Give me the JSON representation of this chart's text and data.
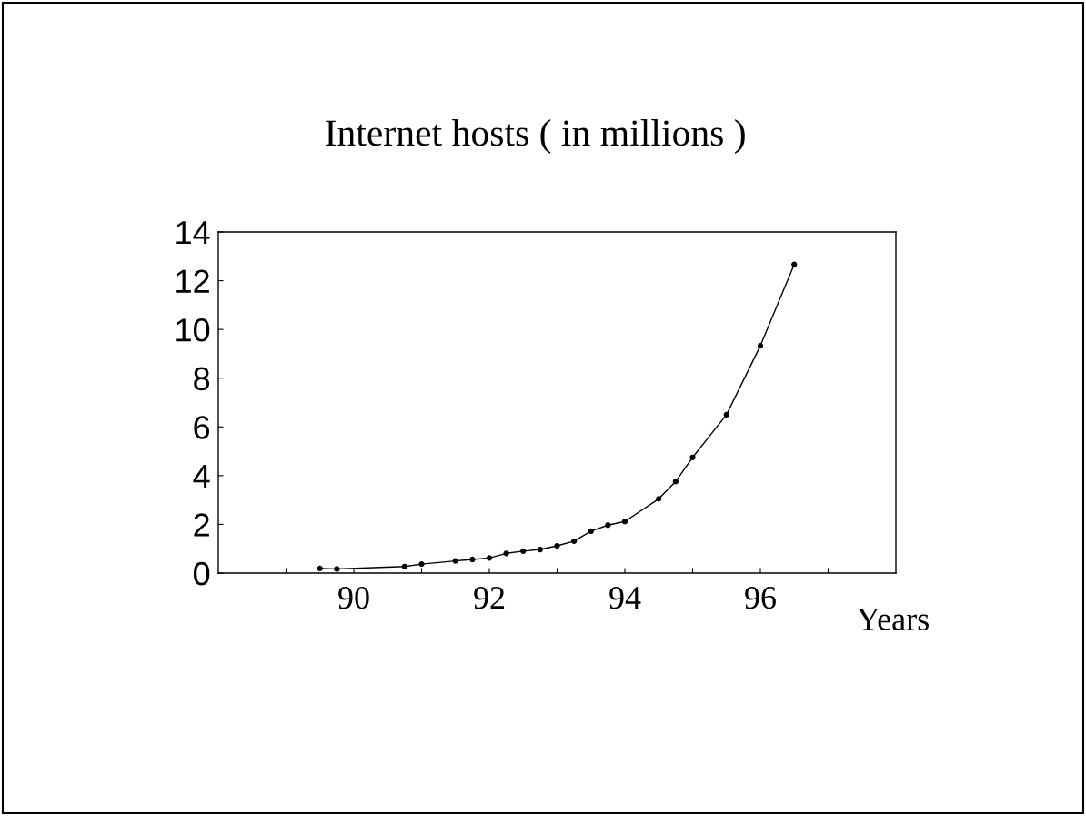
{
  "chart_data": {
    "type": "line",
    "title": "Internet hosts ( in millions )",
    "xlabel": "Years",
    "x": [
      89.5,
      89.75,
      90.75,
      91,
      91.5,
      91.75,
      92,
      92.25,
      92.5,
      92.75,
      93,
      93.25,
      93.5,
      93.75,
      94,
      94.5,
      94.75,
      95,
      95.5,
      96,
      96.5
    ],
    "series": [
      {
        "color": "#000000",
        "values": [
          0.19,
          0.17,
          0.27,
          0.37,
          0.5,
          0.56,
          0.62,
          0.81,
          0.9,
          0.97,
          1.12,
          1.31,
          1.72,
          1.97,
          2.12,
          3.05,
          3.76,
          4.75,
          6.5,
          9.33,
          12.67
        ]
      }
    ],
    "xlim": [
      88,
      98
    ],
    "xticks": [
      {
        "value": 89,
        "label": null
      },
      90,
      {
        "value": 91,
        "label": null
      },
      92,
      {
        "value": 93,
        "label": null
      },
      94,
      {
        "value": 95,
        "label": null
      },
      96,
      {
        "value": 97,
        "label": null
      }
    ],
    "ylim": [
      0,
      14
    ],
    "yticks": [
      0,
      2,
      4,
      6,
      8,
      10,
      12,
      14
    ],
    "marker": "circle",
    "line_style": "solid",
    "grid": false
  }
}
